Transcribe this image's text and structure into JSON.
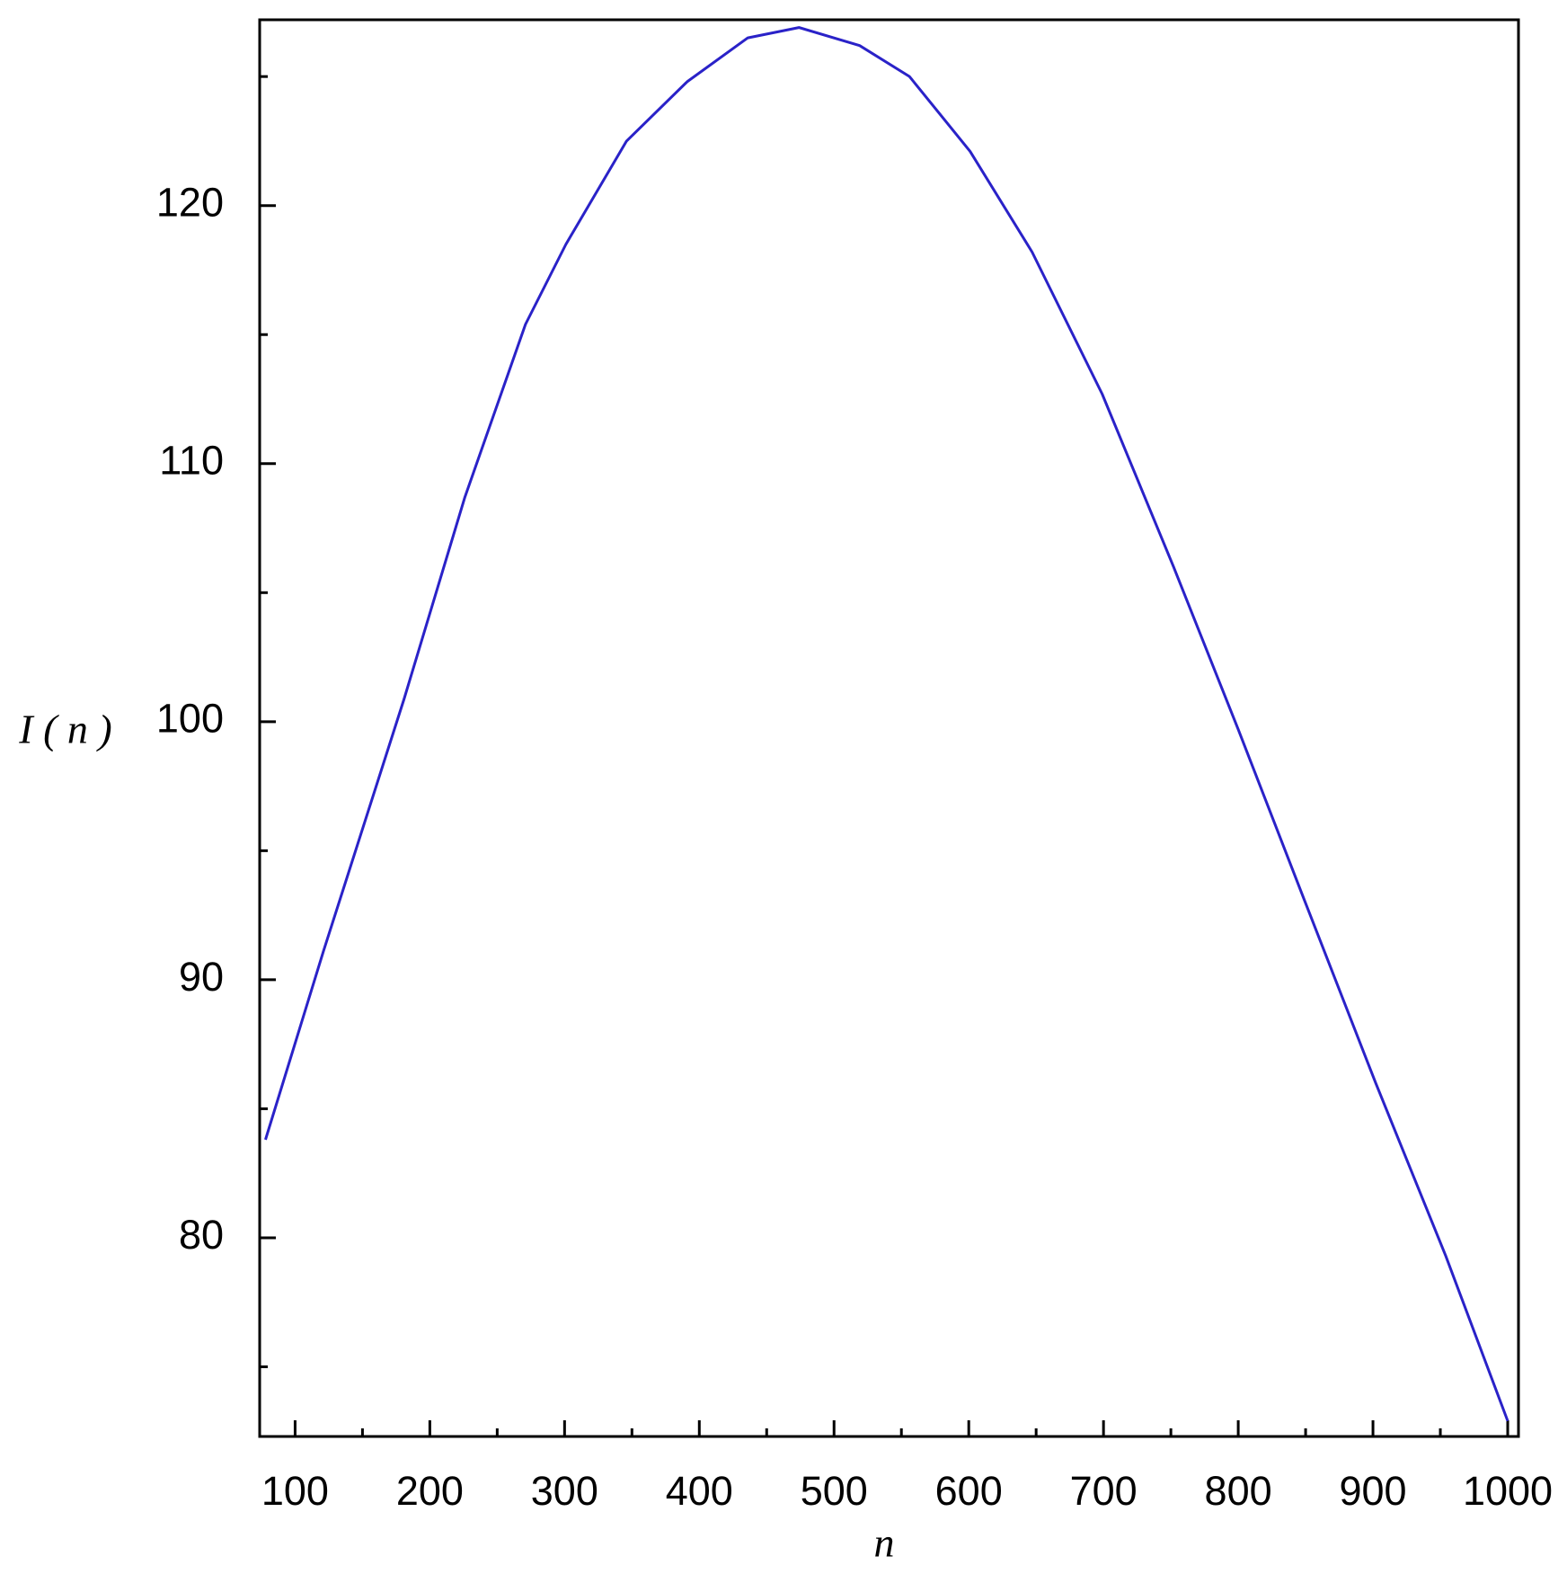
{
  "chart_data": {
    "type": "line",
    "x_label": "n",
    "y_label": "I ( n )",
    "x": [
      78,
      121,
      181,
      226,
      271,
      301,
      346,
      391,
      436,
      474,
      519,
      556,
      601,
      647,
      699,
      752,
      800,
      849,
      902,
      954,
      1000
    ],
    "series": [
      {
        "color": "#2a22c8",
        "values": [
          83.8,
          91.1,
          100.9,
          108.7,
          115.4,
          118.5,
          122.5,
          124.8,
          126.5,
          126.9,
          126.2,
          125.0,
          122.1,
          118.2,
          112.7,
          106.0,
          99.7,
          93.1,
          86.0,
          79.3,
          72.9
        ]
      }
    ],
    "xlim": [
      73.7,
      1008
    ],
    "ylim": [
      72.3,
      127.2
    ],
    "xticks": [
      100,
      200,
      300,
      400,
      500,
      600,
      700,
      800,
      900,
      1000
    ],
    "yticks": [
      80,
      90,
      100,
      110,
      120
    ],
    "xminorticks": [
      150,
      250,
      350,
      450,
      550,
      650,
      750,
      850,
      950
    ],
    "yminorticks": [
      75,
      85,
      95,
      105,
      115,
      125
    ],
    "grid": false
  }
}
